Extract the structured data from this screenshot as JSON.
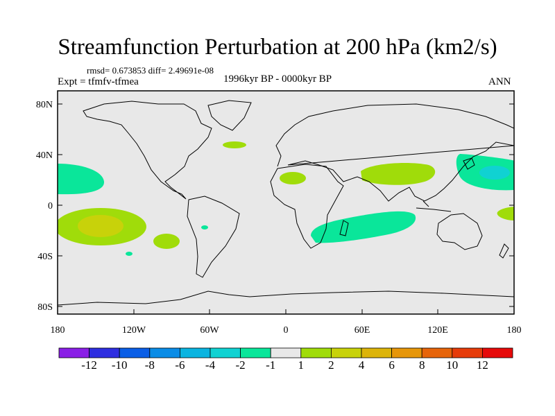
{
  "title": "Streamfunction Perturbation at 200 hPa (km2/s)",
  "stats": "rmsd= 0.673853 diff= 2.49691e-08",
  "experiment": "Expt = tfmfv-tfmea",
  "period": "1996kyr BP - 0000kyr BP",
  "season": "ANN",
  "map": {
    "lat_ticks": [
      "80N",
      "40N",
      "0",
      "40S",
      "80S"
    ],
    "lon_ticks": [
      "180",
      "120W",
      "60W",
      "0",
      "60E",
      "120E",
      "180"
    ],
    "background_color": "#e8e8e8"
  },
  "colorbar": {
    "labels": [
      "-12",
      "-10",
      "-8",
      "-6",
      "-4",
      "-2",
      "-1",
      "1",
      "2",
      "4",
      "6",
      "8",
      "10",
      "12"
    ],
    "colors": [
      "#8a1fe6",
      "#2e2ee0",
      "#0a5ee6",
      "#0a8ce6",
      "#0ab4e0",
      "#10d2d2",
      "#0ae69a",
      "#e8e8e8",
      "#a0dc0a",
      "#c8d20a",
      "#dcb40a",
      "#e6960a",
      "#e6640a",
      "#e63c0a",
      "#e60a0a"
    ]
  }
}
